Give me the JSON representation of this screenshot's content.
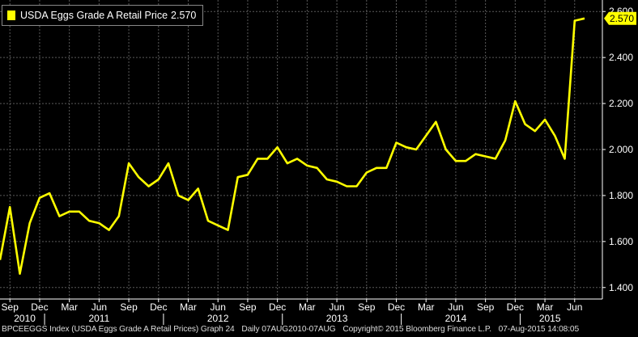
{
  "legend": {
    "label": "USDA Eggs Grade A Retail Price",
    "value": "2.570"
  },
  "last_value_badge": "2.570",
  "footer": {
    "ticker": "BPCEEGGS Index (USDA Eggs Grade A Retail Prices) Graph 24",
    "range": "Daily 07AUG2010-07AUG",
    "copyright": "Copyright© 2015 Bloomberg Finance L.P.",
    "timestamp": "07-Aug-2015 14:08:05"
  },
  "colors": {
    "background": "#000000",
    "line": "#ffff00",
    "grid": "#5a5a5a",
    "axis": "#ffffff"
  },
  "chart_data": {
    "type": "line",
    "title": "",
    "xlabel": "",
    "ylabel": "",
    "ylim": [
      1.35,
      2.65
    ],
    "yticks": [
      "1.400",
      "1.600",
      "1.800",
      "2.000",
      "2.200",
      "2.400",
      "2.600"
    ],
    "month_ticks": [
      "Sep",
      "Dec",
      "Mar",
      "Jun",
      "Sep",
      "Dec",
      "Mar",
      "Jun",
      "Sep",
      "Dec",
      "Mar",
      "Jun",
      "Sep",
      "Dec",
      "Mar",
      "Jun",
      "Sep",
      "Dec",
      "Mar",
      "Jun"
    ],
    "year_labels": [
      "2010",
      "2011",
      "2012",
      "2013",
      "2014",
      "2015"
    ],
    "grid": true,
    "legend_position": "top-left",
    "series": [
      {
        "name": "USDA Eggs Grade A Retail Price",
        "x": [
          "2010-08",
          "2010-09",
          "2010-10",
          "2010-11",
          "2010-12",
          "2011-01",
          "2011-02",
          "2011-03",
          "2011-04",
          "2011-05",
          "2011-06",
          "2011-07",
          "2011-08",
          "2011-09",
          "2011-10",
          "2011-11",
          "2011-12",
          "2012-01",
          "2012-02",
          "2012-03",
          "2012-04",
          "2012-05",
          "2012-06",
          "2012-07",
          "2012-08",
          "2012-09",
          "2012-10",
          "2012-11",
          "2012-12",
          "2013-01",
          "2013-02",
          "2013-03",
          "2013-04",
          "2013-05",
          "2013-06",
          "2013-07",
          "2013-08",
          "2013-09",
          "2013-10",
          "2013-11",
          "2013-12",
          "2014-01",
          "2014-02",
          "2014-03",
          "2014-04",
          "2014-05",
          "2014-06",
          "2014-07",
          "2014-08",
          "2014-09",
          "2014-10",
          "2014-11",
          "2014-12",
          "2015-01",
          "2015-02",
          "2015-03",
          "2015-04",
          "2015-05",
          "2015-06",
          "2015-07"
        ],
        "values": [
          1.52,
          1.75,
          1.46,
          1.68,
          1.79,
          1.81,
          1.71,
          1.73,
          1.73,
          1.69,
          1.68,
          1.65,
          1.71,
          1.94,
          1.88,
          1.84,
          1.87,
          1.94,
          1.8,
          1.78,
          1.83,
          1.69,
          1.67,
          1.65,
          1.88,
          1.89,
          1.96,
          1.96,
          2.01,
          1.94,
          1.96,
          1.93,
          1.92,
          1.87,
          1.86,
          1.84,
          1.84,
          1.9,
          1.92,
          1.92,
          2.03,
          2.01,
          2.0,
          2.06,
          2.12,
          2.0,
          1.95,
          1.95,
          1.98,
          1.97,
          1.96,
          2.04,
          2.21,
          2.11,
          2.08,
          2.13,
          2.06,
          1.96,
          2.56,
          2.57
        ]
      }
    ]
  }
}
